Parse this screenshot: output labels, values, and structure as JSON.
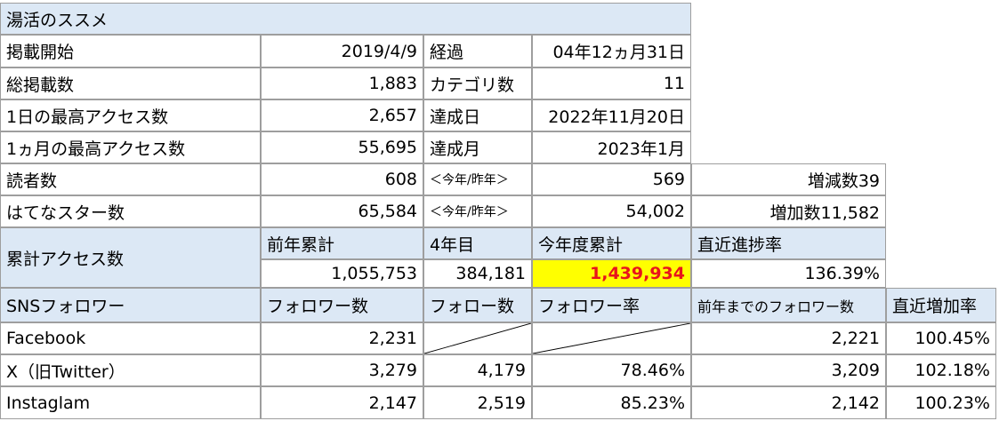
{
  "title": "湯活のススメ",
  "summary": [
    {
      "label": "掲載開始",
      "value": "2019/4/9",
      "label2": "経過",
      "value2": "04年12ヵ月31日"
    },
    {
      "label": "総掲載数",
      "value": "1,883",
      "label2": "カテゴリ数",
      "value2": "11"
    },
    {
      "label": "1日の最高アクセス数",
      "value": "2,657",
      "label2": "達成日",
      "value2": "2022年11月20日"
    },
    {
      "label": "1ヵ月の最高アクセス数",
      "value": "55,695",
      "label2": "達成月",
      "value2": "2023年1月"
    }
  ],
  "readers": {
    "label": "読者数",
    "value": "608",
    "compare": "＜今年/昨年＞",
    "last": "569",
    "diff": "増減数39"
  },
  "stars": {
    "label": "はてなスター数",
    "value": "65,584",
    "compare": "＜今年/昨年＞",
    "last": "54,002",
    "diff": "増加数11,582"
  },
  "access": {
    "label": "累計アクセス数",
    "headers": {
      "prev": "前年累計",
      "year": "4年目",
      "current": "今年度累計",
      "rate": "直近進捗率"
    },
    "values": {
      "prev": "1,055,753",
      "year": "384,181",
      "current": "1,439,934",
      "rate": "136.39%"
    }
  },
  "sns": {
    "headers": {
      "name": "SNSフォロワー",
      "followers": "フォロワー数",
      "following": "フォロー数",
      "ratio": "フォロワー率",
      "prev": "前年までのフォロワー数",
      "growth": "直近増加率"
    },
    "rows": [
      {
        "name": "Facebook",
        "followers": "2,231",
        "following": "",
        "ratio": "",
        "prev": "2,221",
        "growth": "100.45%"
      },
      {
        "name": "X（旧Twitter）",
        "followers": "3,279",
        "following": "4,179",
        "ratio": "78.46%",
        "prev": "3,209",
        "growth": "102.18%"
      },
      {
        "name": "Instaglam",
        "followers": "2,147",
        "following": "2,519",
        "ratio": "85.23%",
        "prev": "2,142",
        "growth": "100.23%"
      }
    ]
  },
  "colors": {
    "header_blue": "#dce8f5",
    "highlight_yellow": "#ffff00",
    "highlight_red": "#e8141c",
    "grid": "#9e9e9e"
  }
}
